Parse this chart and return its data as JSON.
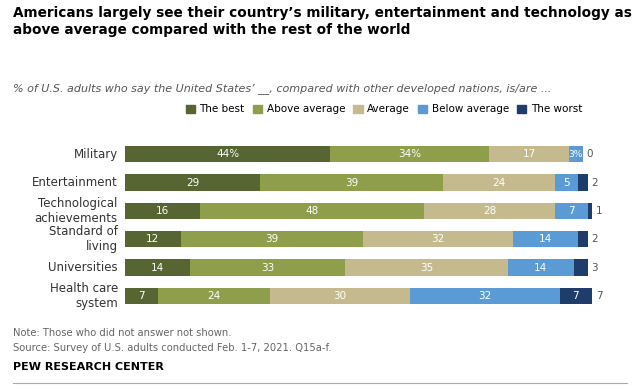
{
  "title": "Americans largely see their country’s military, entertainment and technology as\nabove average compared with the rest of the world",
  "subtitle": "% of U.S. adults who say the United States’ __, compared with other developed nations, is/are ...",
  "categories": [
    "Military",
    "Entertainment",
    "Technological\nachievements",
    "Standard of\nliving",
    "Universities",
    "Health care\nsystem"
  ],
  "series_names": [
    "The best",
    "Above average",
    "Average",
    "Below average",
    "The worst"
  ],
  "series": {
    "The best": [
      44,
      29,
      16,
      12,
      14,
      7
    ],
    "Above average": [
      34,
      39,
      48,
      39,
      33,
      24
    ],
    "Average": [
      17,
      24,
      28,
      32,
      35,
      30
    ],
    "Below average": [
      3,
      5,
      7,
      14,
      14,
      32
    ],
    "The worst": [
      0,
      2,
      1,
      2,
      3,
      7
    ]
  },
  "colors": {
    "The best": "#566531",
    "Above average": "#8f9e4a",
    "Average": "#c4ba8e",
    "Below average": "#5b9bd5",
    "The worst": "#1f3d6b"
  },
  "note1": "Note: Those who did not answer not shown.",
  "note2": "Source: Survey of U.S. adults conducted Feb. 1-7, 2021. Q15a-f.",
  "footer": "PEW RESEARCH CENTER",
  "bg_color": "#ffffff",
  "bar_height": 0.58,
  "figsize": [
    6.4,
    3.88
  ],
  "dpi": 100
}
